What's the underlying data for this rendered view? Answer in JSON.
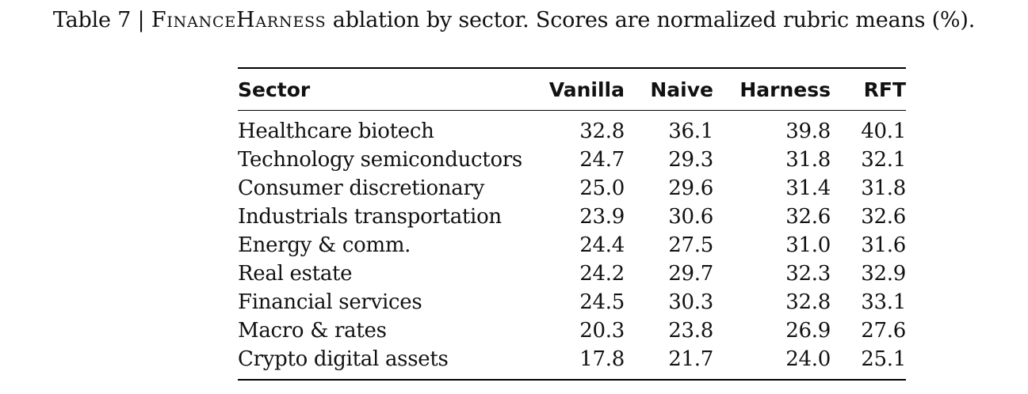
{
  "caption": {
    "prefix": "Table 7 | ",
    "name": "FinanceHarness",
    "rest": " ablation by sector. Scores are normalized rubric means (%)."
  },
  "table": {
    "headers": [
      "Sector",
      "Vanilla",
      "Naive",
      "Harness",
      "RFT"
    ],
    "rows": [
      [
        "Healthcare biotech",
        "32.8",
        "36.1",
        "39.8",
        "40.1"
      ],
      [
        "Technology semiconductors",
        "24.7",
        "29.3",
        "31.8",
        "32.1"
      ],
      [
        "Consumer discretionary",
        "25.0",
        "29.6",
        "31.4",
        "31.8"
      ],
      [
        "Industrials transportation",
        "23.9",
        "30.6",
        "32.6",
        "32.6"
      ],
      [
        "Energy & comm.",
        "24.4",
        "27.5",
        "31.0",
        "31.6"
      ],
      [
        "Real estate",
        "24.2",
        "29.7",
        "32.3",
        "32.9"
      ],
      [
        "Financial services",
        "24.5",
        "30.3",
        "32.8",
        "33.1"
      ],
      [
        "Macro & rates",
        "20.3",
        "23.8",
        "26.9",
        "27.6"
      ],
      [
        "Crypto digital assets",
        "17.8",
        "21.7",
        "24.0",
        "25.1"
      ]
    ]
  }
}
